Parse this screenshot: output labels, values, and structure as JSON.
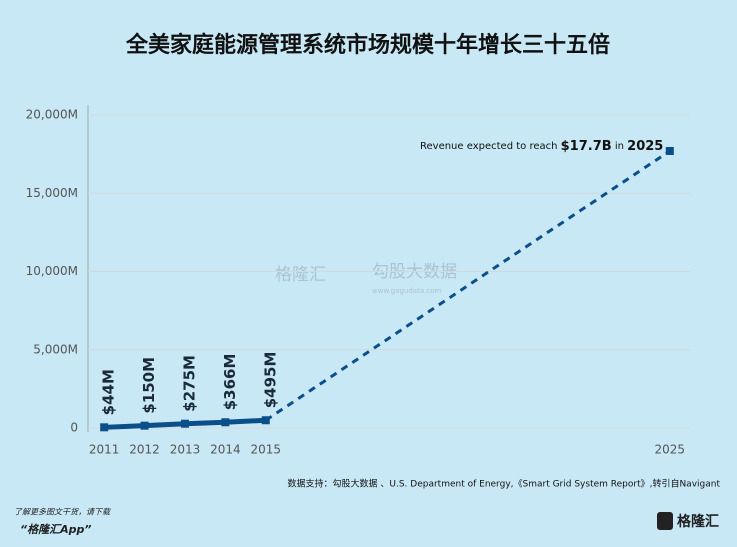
{
  "chart_data": {
    "type": "line",
    "title": "全美家庭能源管理系统市场规模十年增长三十五倍",
    "x": [
      2011,
      2012,
      2013,
      2014,
      2015,
      2025
    ],
    "xlim": [
      2010.6,
      2025.5
    ],
    "series": [
      {
        "color": "#0b4f8a",
        "values": [
          44,
          150,
          275,
          366,
          495,
          17700
        ],
        "value_labels": [
          "$44M",
          "$150M",
          "$275M",
          "$366M",
          "$495M",
          null
        ]
      }
    ],
    "ylim": [
      0,
      20000
    ],
    "yticks": [
      0,
      {
        "value": 5000,
        "label": "5,000M"
      },
      {
        "value": 10000,
        "label": "10,000M"
      },
      {
        "value": 15000,
        "label": "15,000M"
      },
      {
        "value": 20000,
        "label": "20,000M"
      }
    ],
    "grid": true,
    "annotation": [
      "Revenue expected to reach",
      "$17.7B",
      "in",
      "2025"
    ],
    "source": "数据支持：勾股大数据 、U.S. Department of Energy,《Smart Grid System Report》,转引自Navigant",
    "watermark": [
      "格隆汇",
      "勾股大数据",
      "www.gogudata.com"
    ],
    "footer": [
      "了解更多图文干货，请下载",
      "“格隆汇App”"
    ],
    "logo": "格隆汇"
  }
}
